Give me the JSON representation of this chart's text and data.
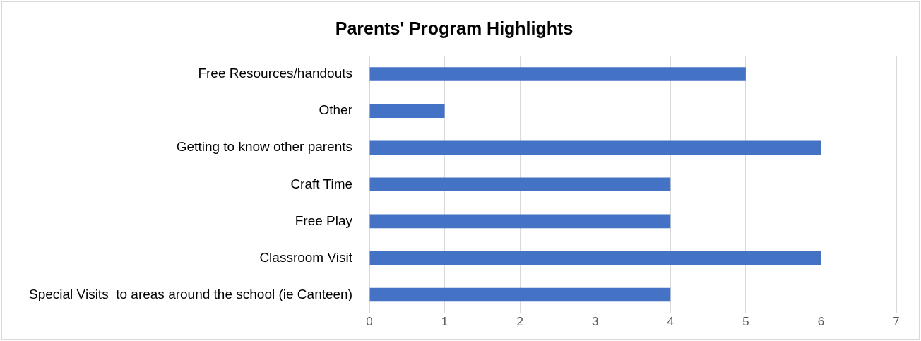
{
  "chart_data": {
    "type": "bar",
    "orientation": "horizontal",
    "title": "Parents' Program Highlights",
    "categories": [
      "Free Resources/handouts",
      "Other",
      "Getting to know other parents",
      "Craft Time",
      "Free Play",
      "Classroom Visit",
      "Special Visits  to areas around the school (ie Canteen)"
    ],
    "values": [
      5,
      1,
      6,
      4,
      4,
      6,
      4
    ],
    "color": "#4472c4",
    "xlim": [
      0,
      7
    ],
    "xticks": [
      0,
      1,
      2,
      3,
      4,
      5,
      6,
      7
    ],
    "grid": "x",
    "legend": false
  }
}
